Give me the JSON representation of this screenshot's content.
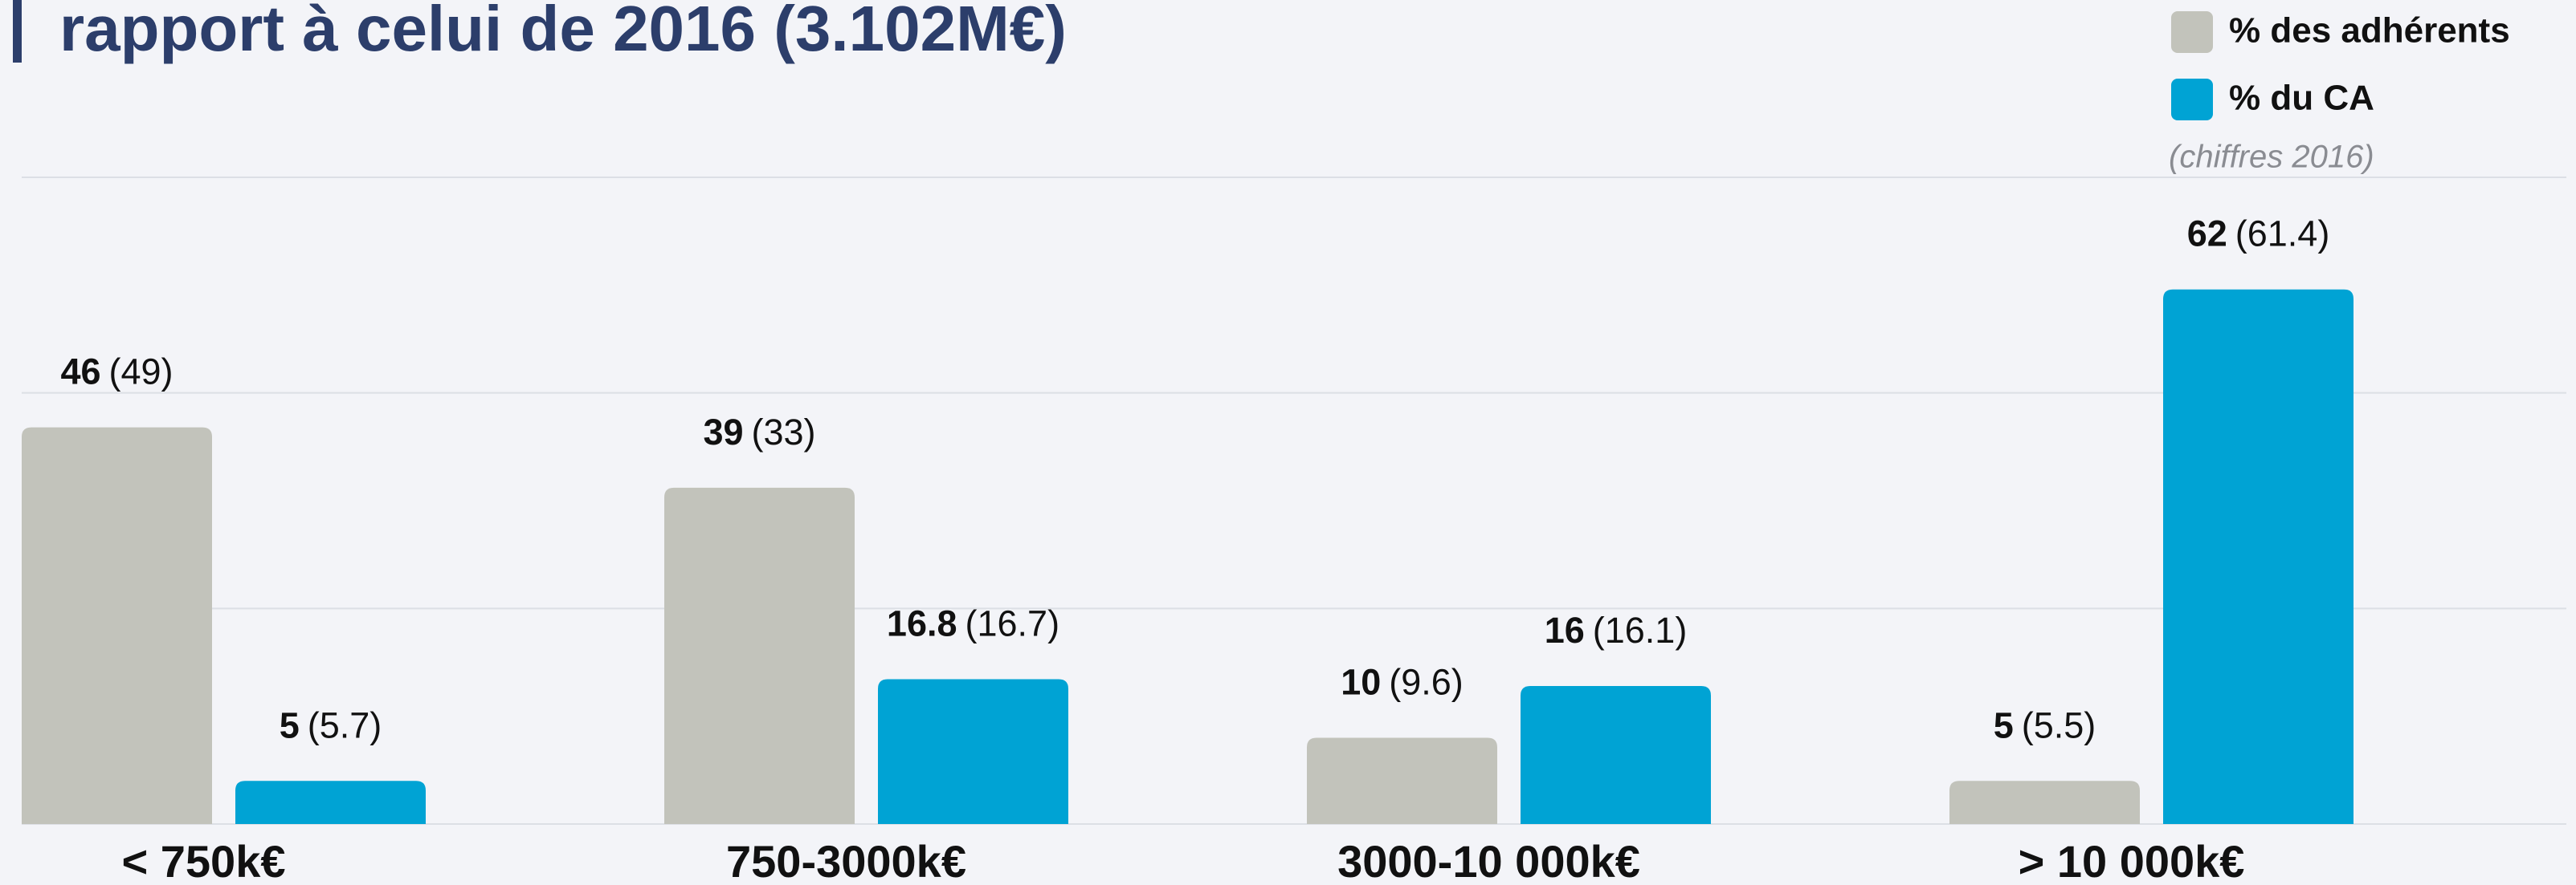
{
  "chart_data": {
    "type": "bar",
    "title": "rapport à celui de 2016 (3.102M€)",
    "categories": [
      "< 750k€",
      "750-3000k€",
      "3000-10 000k€",
      "> 10 000k€"
    ],
    "series": [
      {
        "name": "% des adhérents",
        "color": "#c2c3bb",
        "values": [
          46,
          39,
          10,
          5
        ],
        "compare_labels": [
          "(49)",
          "(33)",
          "(9.6)",
          "(5.5)"
        ]
      },
      {
        "name": "% du CA",
        "color": "#00a3d4",
        "values": [
          5,
          16.8,
          16,
          62
        ],
        "compare_labels": [
          "(5.7)",
          "(16.7)",
          "(16.1)",
          "(61.4)"
        ]
      }
    ],
    "legend_note": "(chiffres 2016)",
    "ylim": [
      0,
      75
    ],
    "yticks": [
      0,
      25,
      50,
      75
    ],
    "grid": true,
    "legend": "upper right"
  }
}
